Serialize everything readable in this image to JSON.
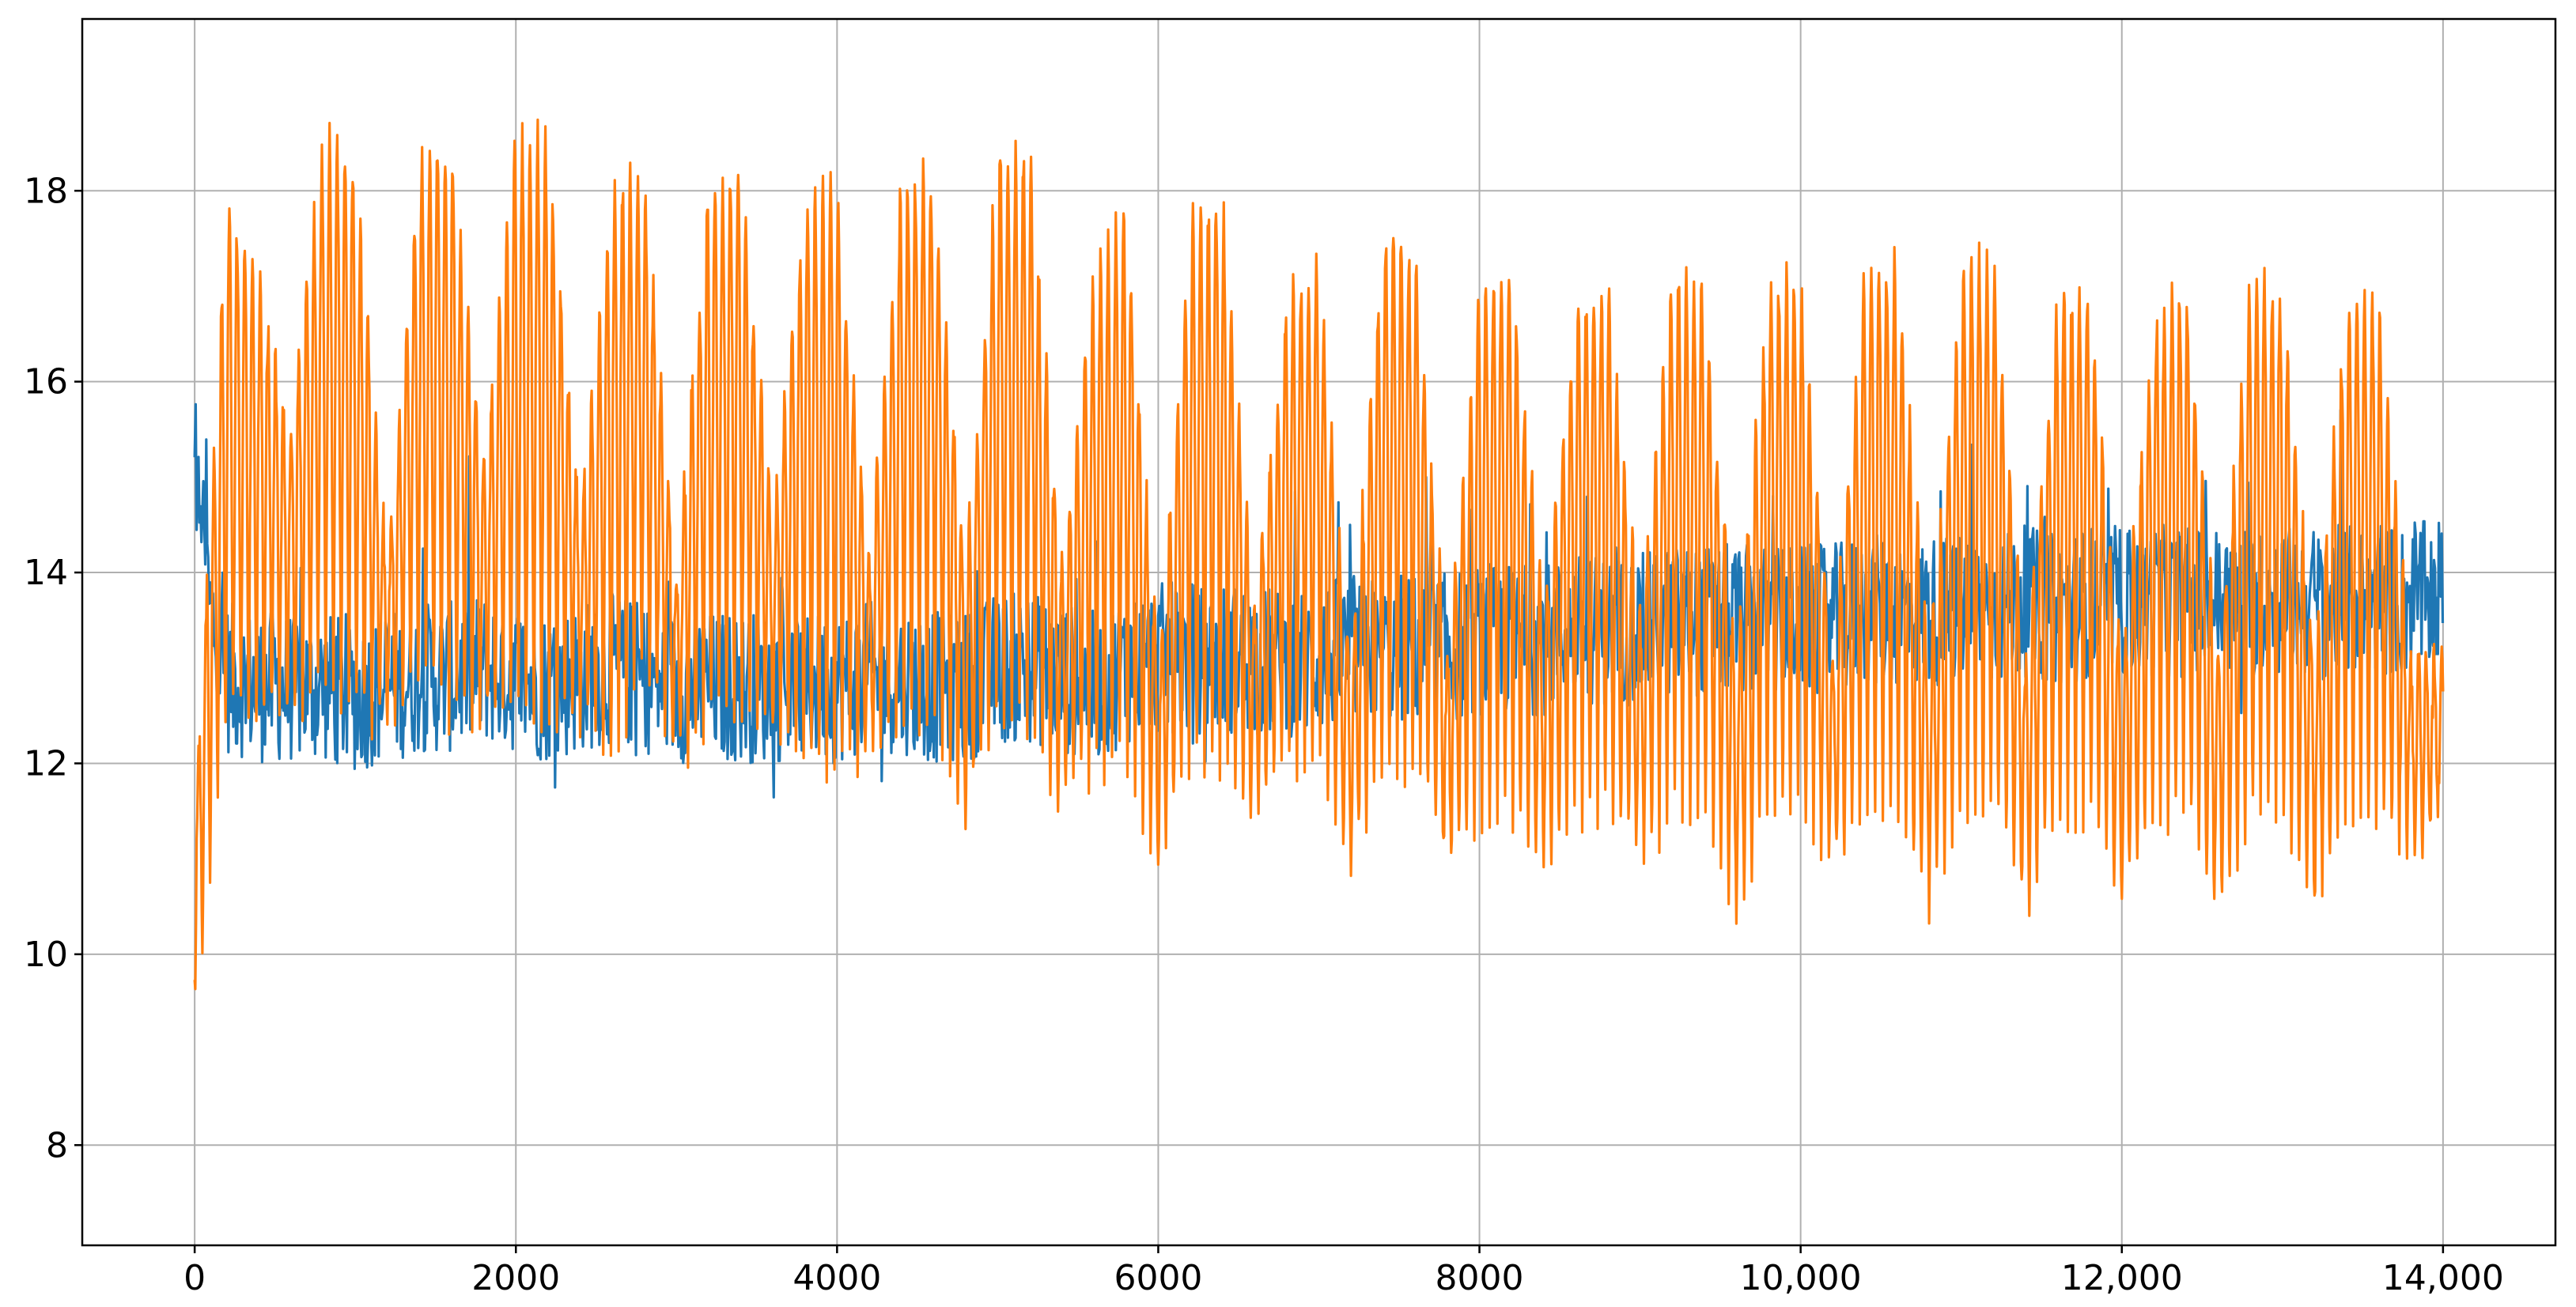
{
  "chart_data": {
    "type": "line",
    "title": "",
    "xlabel": "",
    "ylabel": "",
    "xlim": [
      -700,
      14700
    ],
    "ylim": [
      6.95,
      19.8
    ],
    "x_ticks": [
      0,
      2000,
      4000,
      6000,
      8000,
      10000,
      12000,
      14000
    ],
    "x_tick_labels": [
      "0",
      "2000",
      "4000",
      "6000",
      "8000",
      "10,000",
      "12,000",
      "14,000"
    ],
    "y_ticks": [
      8,
      10,
      12,
      14,
      16,
      18
    ],
    "y_tick_labels": [
      "8",
      "10",
      "12",
      "14",
      "16",
      "18"
    ],
    "grid": true,
    "legend": "none",
    "x_range": [
      0,
      14000
    ],
    "series": [
      {
        "color": "#1f77b4",
        "approx_values_every_200": [
          14.2,
          12.9,
          12.8,
          12.8,
          12.8,
          12.7,
          12.8,
          12.9,
          12.9,
          13.0,
          12.9,
          12.8,
          12.9,
          13.0,
          12.9,
          12.8,
          12.8,
          12.8,
          12.8,
          12.8,
          12.8,
          12.9,
          12.9,
          12.8,
          12.8,
          13.0,
          13.0,
          12.9,
          12.8,
          13.0,
          13.1,
          13.1,
          13.1,
          13.1,
          13.0,
          13.1,
          13.2,
          13.2,
          13.2,
          13.2,
          13.3,
          13.3,
          13.3,
          13.4,
          13.4,
          13.4,
          13.5,
          13.5,
          13.5,
          13.5,
          13.5,
          13.5,
          13.6,
          13.6,
          13.6,
          13.6,
          13.6,
          13.7,
          13.6,
          13.7,
          13.7,
          13.7,
          13.7,
          13.7,
          13.7,
          13.7,
          13.7,
          13.7,
          13.7,
          13.7,
          13.8
        ]
      },
      {
        "color": "#ff7f0e",
        "approx_daily_range_every_200": [
          [
            9.5,
            11.5
          ],
          [
            12.5,
            17.8
          ],
          [
            12.5,
            17.0
          ],
          [
            12.5,
            15.5
          ],
          [
            13.0,
            18.5
          ],
          [
            12.5,
            18.3
          ],
          [
            12.5,
            14.0
          ],
          [
            13.0,
            18.2
          ],
          [
            12.5,
            18.5
          ],
          [
            12.5,
            15.0
          ],
          [
            12.5,
            18.5
          ],
          [
            12.5,
            18.5
          ],
          [
            12.5,
            14.5
          ],
          [
            12.0,
            18.0
          ],
          [
            13.0,
            18.1
          ],
          [
            12.0,
            14.0
          ],
          [
            12.5,
            18.0
          ],
          [
            12.5,
            18.2
          ],
          [
            12.5,
            14.5
          ],
          [
            12.0,
            17.8
          ],
          [
            12.0,
            18.0
          ],
          [
            12.0,
            14.0
          ],
          [
            12.5,
            18.0
          ],
          [
            12.5,
            18.2
          ],
          [
            11.5,
            14.0
          ],
          [
            12.5,
            18.3
          ],
          [
            12.5,
            18.4
          ],
          [
            11.5,
            14.0
          ],
          [
            12.0,
            17.0
          ],
          [
            12.0,
            17.8
          ],
          [
            11.0,
            13.0
          ],
          [
            12.0,
            17.6
          ],
          [
            12.0,
            17.9
          ],
          [
            11.5,
            13.5
          ],
          [
            12.0,
            16.8
          ],
          [
            12.0,
            17.2
          ],
          [
            11.0,
            13.0
          ],
          [
            12.0,
            17.5
          ],
          [
            12.0,
            17.3
          ],
          [
            11.0,
            13.0
          ],
          [
            11.5,
            17.0
          ],
          [
            11.5,
            17.2
          ],
          [
            11.0,
            13.5
          ],
          [
            11.5,
            16.7
          ],
          [
            11.5,
            17.0
          ],
          [
            11.0,
            13.5
          ],
          [
            11.5,
            17.1
          ],
          [
            11.5,
            17.0
          ],
          [
            10.5,
            13.0
          ],
          [
            11.5,
            17.0
          ],
          [
            11.5,
            17.0
          ],
          [
            11.0,
            13.0
          ],
          [
            11.5,
            17.1
          ],
          [
            11.5,
            17.2
          ],
          [
            10.5,
            13.0
          ],
          [
            11.5,
            17.1
          ],
          [
            11.5,
            17.3
          ],
          [
            10.5,
            13.0
          ],
          [
            11.5,
            16.8
          ],
          [
            11.5,
            16.9
          ],
          [
            10.5,
            13.0
          ],
          [
            11.5,
            16.6
          ],
          [
            11.5,
            17.0
          ],
          [
            10.5,
            13.0
          ],
          [
            11.5,
            17.0
          ],
          [
            11.5,
            16.9
          ],
          [
            10.5,
            13.0
          ],
          [
            11.5,
            16.8
          ],
          [
            11.5,
            16.8
          ],
          [
            11.0,
            13.0
          ],
          [
            11.5,
            13.0
          ]
        ]
      }
    ]
  }
}
